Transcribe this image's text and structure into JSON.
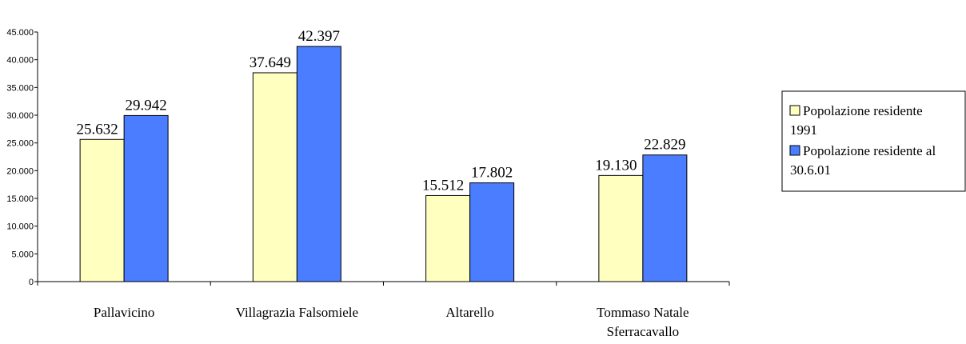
{
  "chart_data": {
    "type": "bar",
    "categories": [
      [
        "Pallavicino"
      ],
      [
        "Villagrazia Falsomiele"
      ],
      [
        "Altarello"
      ],
      [
        "Tommaso Natale",
        "Sferracavallo"
      ]
    ],
    "series": [
      {
        "name": "Popolazione residente 1991",
        "legend_lines": [
          "Popolazione residente",
          "1991"
        ],
        "color": "#ffffc0",
        "values": [
          25632,
          37649,
          15512,
          19130
        ],
        "labels": [
          "25.632",
          "37.649",
          "15.512",
          "19.130"
        ]
      },
      {
        "name": "Popolazione residente al 30.6.01",
        "legend_lines": [
          "Popolazione residente al",
          "30.6.01"
        ],
        "color": "#4a7dff",
        "values": [
          29942,
          42397,
          17802,
          22829
        ],
        "labels": [
          "29.942",
          "42.397",
          "17.802",
          "22.829"
        ]
      }
    ],
    "y_ticks": [
      {
        "value": 0,
        "label": "0"
      },
      {
        "value": 5000,
        "label": "5.000"
      },
      {
        "value": 10000,
        "label": "10.000"
      },
      {
        "value": 15000,
        "label": "15.000"
      },
      {
        "value": 20000,
        "label": "20.000"
      },
      {
        "value": 25000,
        "label": "25.000"
      },
      {
        "value": 30000,
        "label": "30.000"
      },
      {
        "value": 35000,
        "label": "35.000"
      },
      {
        "value": 40000,
        "label": "40.000"
      },
      {
        "value": 45000,
        "label": "45.000"
      }
    ],
    "ylim": [
      0,
      45000
    ],
    "grid": false,
    "legend_position": "right"
  }
}
